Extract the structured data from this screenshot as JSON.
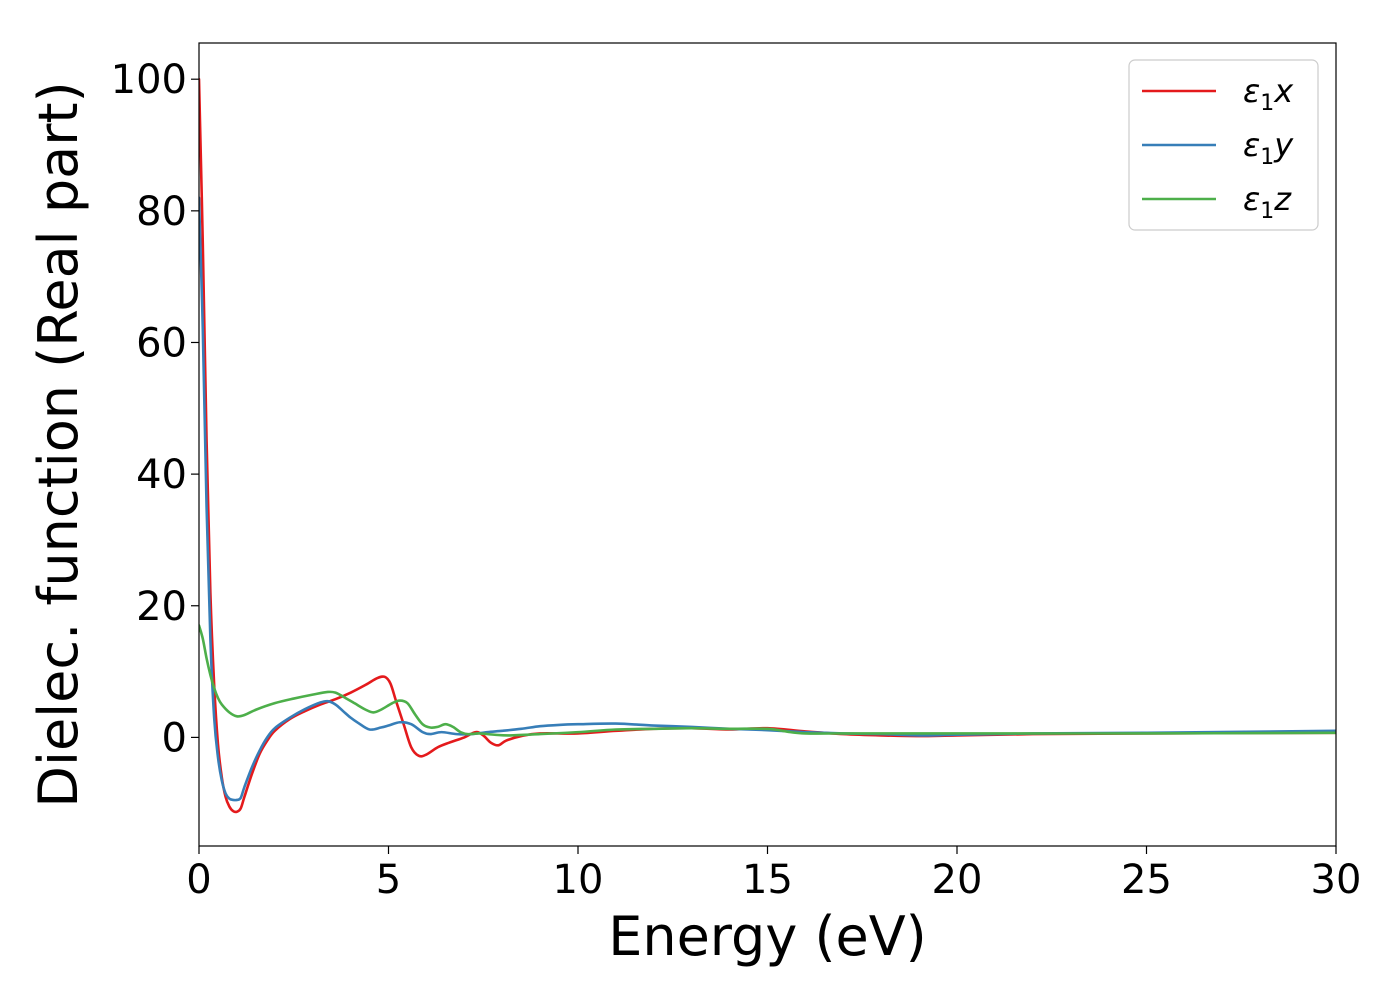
{
  "chart_data": {
    "type": "line",
    "title": "",
    "xlabel": "Energy (eV)",
    "ylabel": "Dielec. function (Real part)",
    "xlim": [
      0,
      30
    ],
    "ylim": [
      -16.5,
      105.5
    ],
    "xticks": [
      0,
      5,
      10,
      15,
      20,
      25,
      30
    ],
    "yticks": [
      0,
      20,
      40,
      60,
      80,
      100
    ],
    "grid": false,
    "legend_position": "top-right",
    "series": [
      {
        "name": "ε1x",
        "legend_main": "ε",
        "legend_sub": "1",
        "legend_suffix": "x",
        "color": "#e41a1c",
        "x": [
          0,
          0.1,
          0.2,
          0.3,
          0.4,
          0.5,
          0.6,
          0.7,
          0.8,
          0.9,
          1.0,
          1.1,
          1.2,
          1.4,
          1.6,
          1.8,
          2.0,
          2.4,
          2.8,
          3.2,
          3.6,
          4.0,
          4.4,
          4.7,
          4.9,
          5.05,
          5.2,
          5.4,
          5.6,
          5.8,
          6.0,
          6.3,
          6.6,
          7.0,
          7.3,
          7.5,
          7.7,
          7.9,
          8.1,
          8.5,
          9.0,
          10,
          11,
          12,
          13,
          14,
          15,
          16,
          17,
          18,
          19,
          20,
          22,
          25,
          30
        ],
        "values": [
          100,
          75,
          45,
          22,
          8,
          -1,
          -6,
          -9,
          -10.5,
          -11.2,
          -11.3,
          -10.8,
          -9,
          -5.5,
          -2.5,
          -0.5,
          1,
          2.8,
          4,
          5,
          5.8,
          6.8,
          8.0,
          9.0,
          9.2,
          8.2,
          5.5,
          2,
          -1.5,
          -2.8,
          -2.6,
          -1.5,
          -0.8,
          0,
          0.8,
          0.3,
          -0.8,
          -1.2,
          -0.5,
          0.2,
          0.6,
          0.6,
          1.0,
          1.3,
          1.4,
          1.2,
          1.4,
          0.9,
          0.5,
          0.3,
          0.2,
          0.3,
          0.5,
          0.6,
          0.7
        ]
      },
      {
        "name": "ε1y",
        "legend_main": "ε",
        "legend_sub": "1",
        "legend_suffix": "y",
        "color": "#377eb8",
        "x": [
          0,
          0.1,
          0.2,
          0.3,
          0.4,
          0.5,
          0.6,
          0.7,
          0.8,
          0.9,
          1.0,
          1.1,
          1.2,
          1.4,
          1.6,
          1.8,
          2.0,
          2.4,
          2.8,
          3.2,
          3.4,
          3.6,
          3.8,
          4.0,
          4.2,
          4.5,
          4.8,
          5.0,
          5.3,
          5.6,
          5.9,
          6.1,
          6.4,
          6.8,
          7.2,
          7.6,
          8.0,
          8.5,
          9.0,
          9.5,
          10,
          11,
          12,
          13,
          14,
          15,
          16,
          17,
          18,
          19,
          20,
          22,
          25,
          30
        ],
        "values": [
          82,
          62,
          35,
          15,
          3,
          -3,
          -6.5,
          -8.5,
          -9.3,
          -9.5,
          -9.5,
          -9.2,
          -7.5,
          -4.5,
          -2,
          0,
          1.4,
          3,
          4.3,
          5.3,
          5.5,
          5,
          4,
          3,
          2.2,
          1.2,
          1.5,
          1.8,
          2.3,
          2.0,
          0.8,
          0.5,
          0.8,
          0.5,
          0.5,
          0.8,
          1.0,
          1.3,
          1.7,
          1.9,
          2.0,
          2.1,
          1.8,
          1.6,
          1.3,
          1.1,
          0.8,
          0.6,
          0.5,
          0.3,
          0.4,
          0.6,
          0.7,
          1.0
        ]
      },
      {
        "name": "ε1z",
        "legend_main": "ε",
        "legend_sub": "1",
        "legend_suffix": "z",
        "color": "#4daf4a",
        "x": [
          0,
          0.1,
          0.2,
          0.3,
          0.4,
          0.5,
          0.6,
          0.8,
          1.0,
          1.2,
          1.5,
          2.0,
          2.5,
          3.0,
          3.4,
          3.6,
          3.8,
          4.1,
          4.4,
          4.6,
          4.8,
          5.1,
          5.3,
          5.5,
          5.7,
          5.9,
          6.1,
          6.3,
          6.5,
          6.7,
          6.9,
          7.1,
          7.4,
          7.8,
          8.2,
          9,
          10,
          11,
          12,
          13,
          14,
          15,
          15.6,
          16,
          17,
          18,
          20,
          25,
          30
        ],
        "values": [
          17,
          15,
          12,
          9.5,
          7.5,
          6,
          5,
          3.8,
          3.2,
          3.4,
          4.2,
          5.2,
          5.9,
          6.5,
          6.9,
          6.8,
          6.2,
          5.2,
          4.2,
          3.8,
          4.2,
          5.2,
          5.6,
          5.2,
          3.5,
          2.0,
          1.5,
          1.6,
          2.0,
          1.6,
          0.8,
          0.5,
          0.6,
          0.4,
          0.3,
          0.5,
          0.8,
          1.2,
          1.3,
          1.4,
          1.3,
          1.3,
          0.8,
          0.6,
          0.6,
          0.6,
          0.6,
          0.6,
          0.7
        ]
      }
    ]
  }
}
